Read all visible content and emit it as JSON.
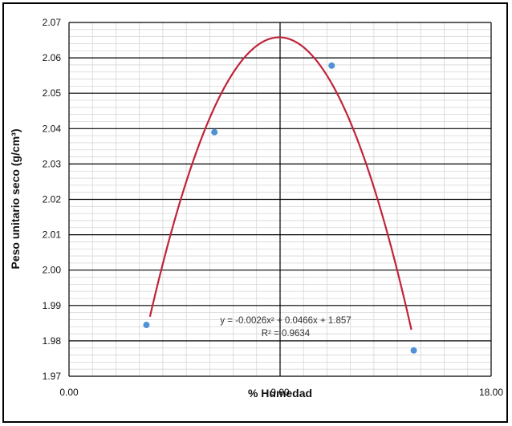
{
  "chart_data": {
    "type": "scatter",
    "xlabel": "% Humedad",
    "ylabel": "Peso unitario seco (g/cm³)",
    "xlim": [
      0,
      18
    ],
    "ylim": [
      1.97,
      2.07
    ],
    "x_ticks": [
      "0.00",
      "9.00",
      "18.00"
    ],
    "y_ticks": [
      "1.97",
      "1.98",
      "1.99",
      "2.00",
      "2.01",
      "2.02",
      "2.03",
      "2.04",
      "2.05",
      "2.06",
      "2.07"
    ],
    "points": [
      {
        "x": 3.3,
        "y": 1.9845
      },
      {
        "x": 6.2,
        "y": 2.039
      },
      {
        "x": 11.2,
        "y": 2.0578
      },
      {
        "x": 14.7,
        "y": 1.9773
      }
    ],
    "trendline": {
      "type": "polynomial",
      "coefficients": [
        -0.0026,
        0.0466,
        1.857
      ],
      "x_range": [
        3.45,
        14.6
      ],
      "color": "#c0243a"
    },
    "annotations": {
      "equation": "y = -0.0026x² + 0.0466x + 1.857",
      "r_squared": "R² = 0.9634"
    },
    "marker_color": "#4f93d6",
    "grid": true
  }
}
